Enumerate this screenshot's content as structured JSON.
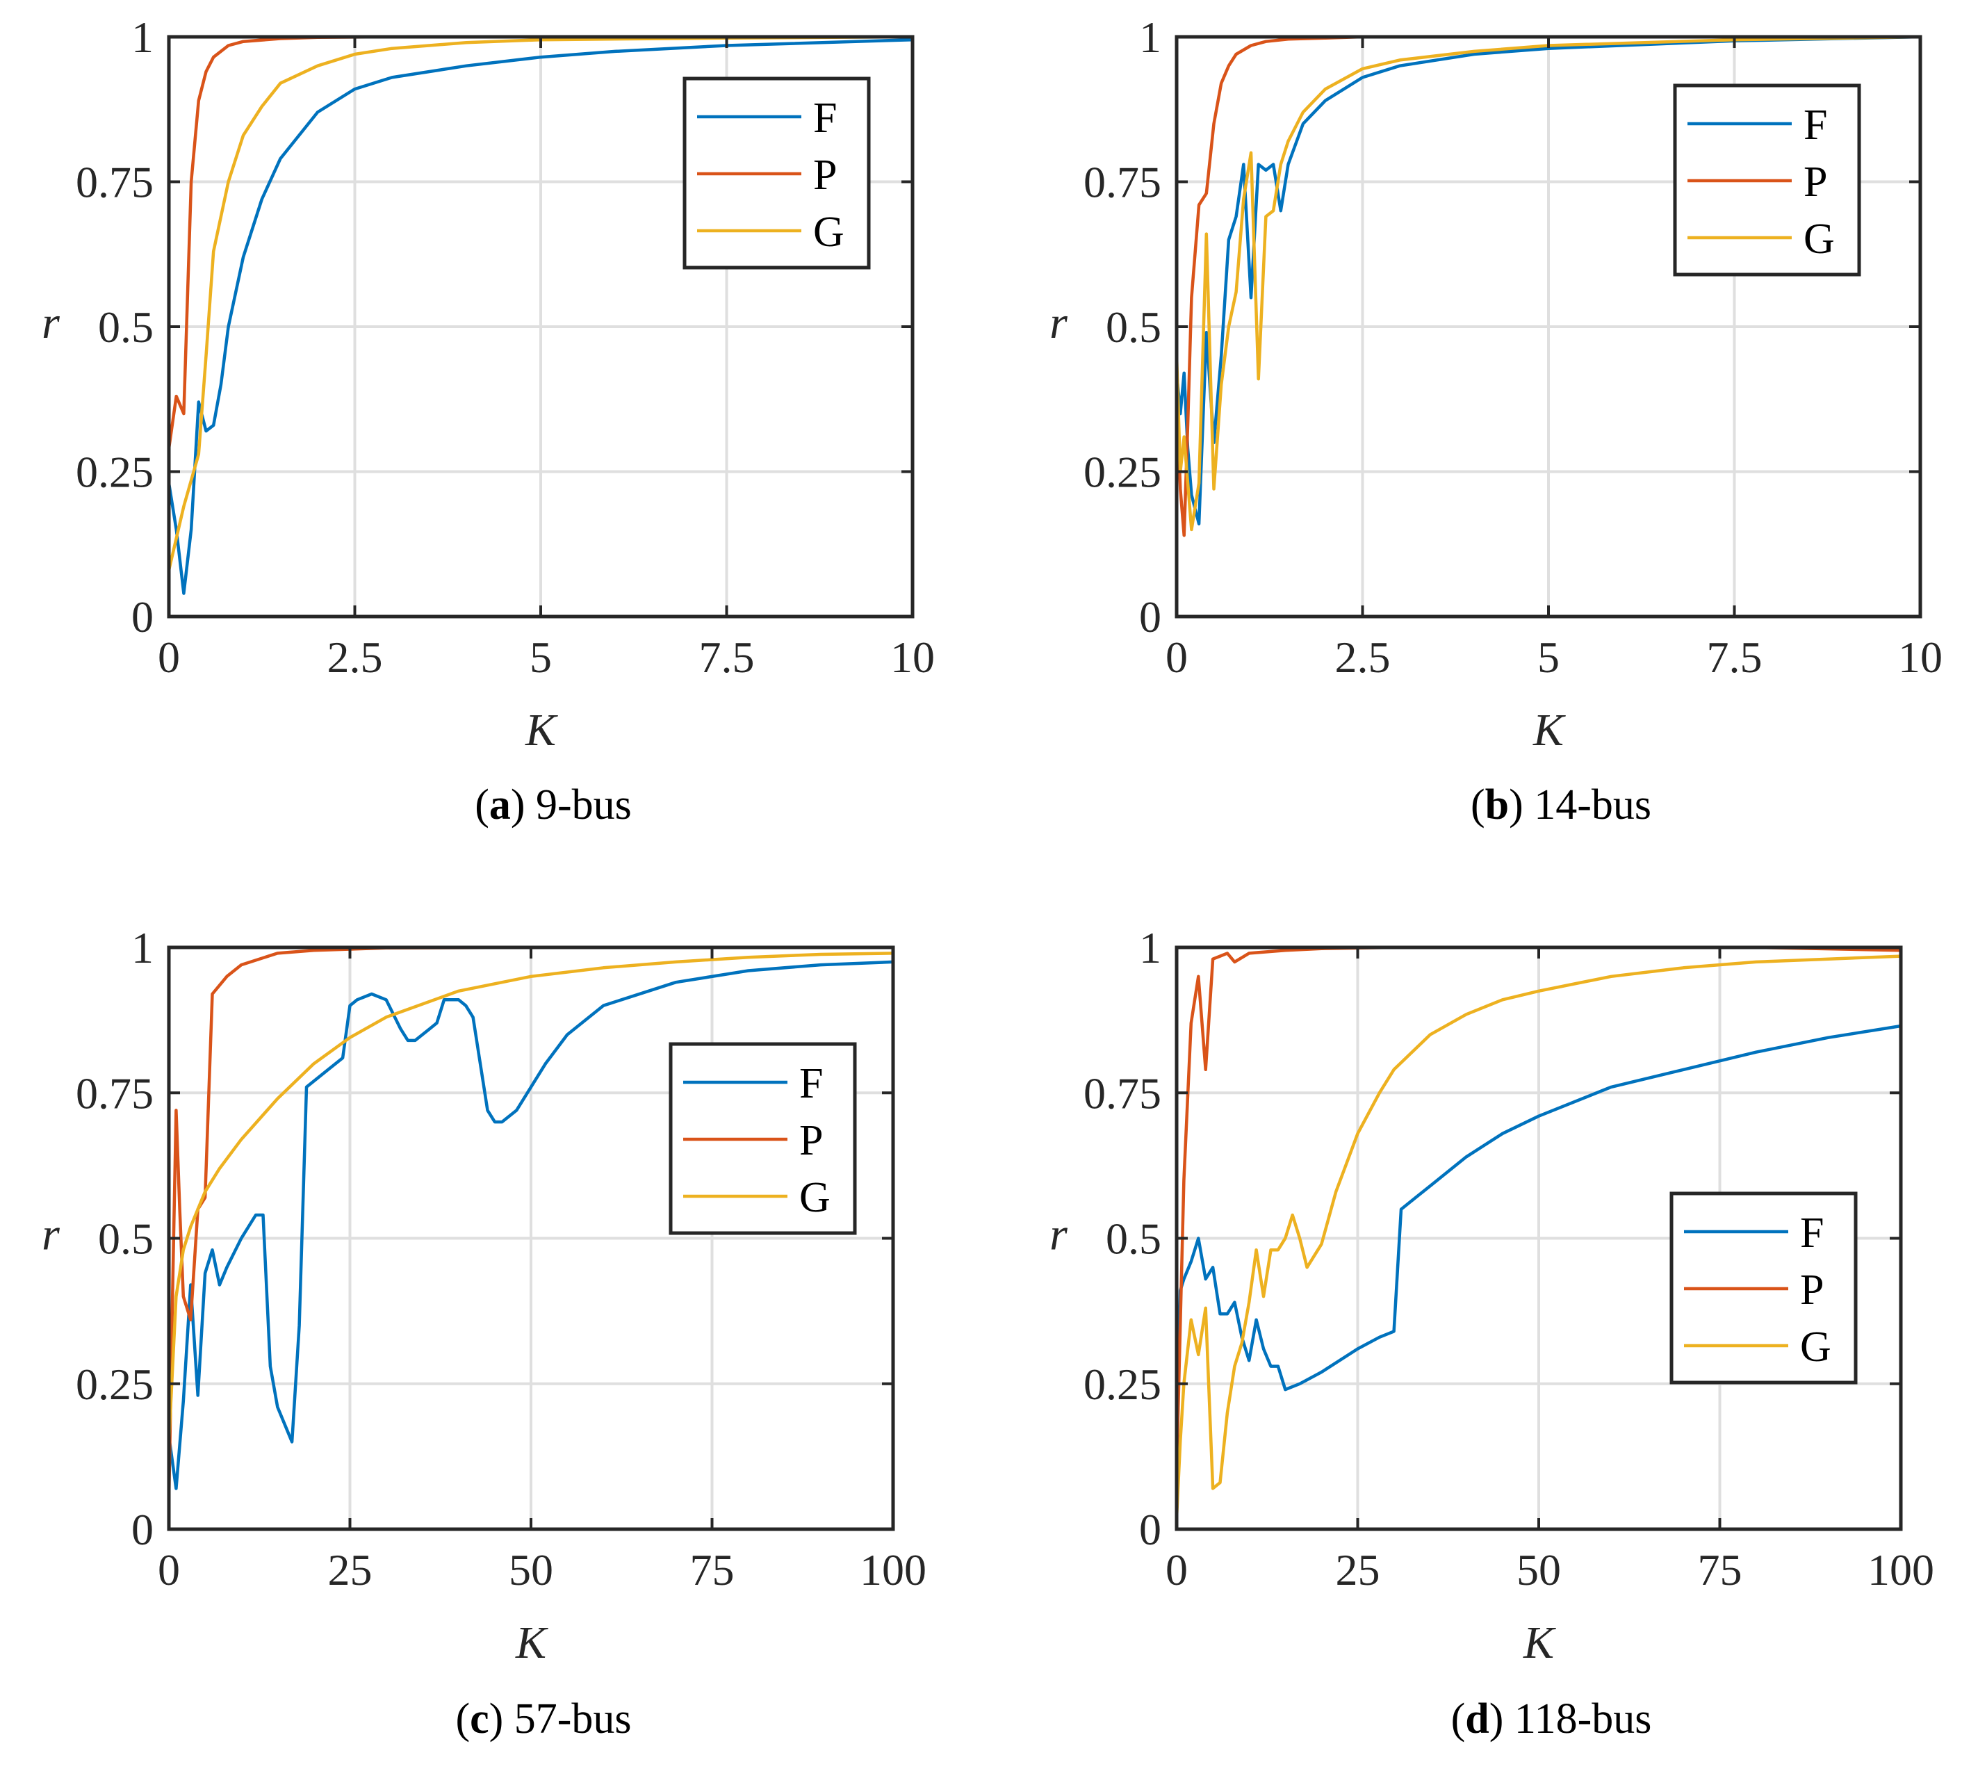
{
  "figure": {
    "panel_count": 4
  },
  "chart_data": [
    {
      "id": "a",
      "type": "line",
      "caption": {
        "label": "(a)",
        "letter": "a",
        "text": "9-bus"
      },
      "xlabel": "K",
      "ylabel": "r",
      "xlim": [
        0,
        10
      ],
      "ylim": [
        0,
        1
      ],
      "xticks": [
        0,
        2.5,
        5,
        7.5,
        10
      ],
      "xticklabels": [
        "0",
        "2.5",
        "5",
        "7.5",
        "10"
      ],
      "yticks": [
        0,
        0.25,
        0.5,
        0.75,
        1
      ],
      "yticklabels": [
        "0",
        "0.25",
        "0.5",
        "0.75",
        "1"
      ],
      "grid": true,
      "legend": {
        "placement": "top-right",
        "entries": [
          "F",
          "P",
          "G"
        ]
      },
      "series": [
        {
          "name": "F",
          "color": "#0072bd",
          "x": [
            0,
            0.1,
            0.2,
            0.3,
            0.4,
            0.5,
            0.6,
            0.7,
            0.8,
            1.0,
            1.25,
            1.5,
            2.0,
            2.5,
            3.0,
            4.0,
            5.0,
            6.0,
            7.5,
            10
          ],
          "y": [
            0.23,
            0.15,
            0.04,
            0.15,
            0.37,
            0.32,
            0.33,
            0.4,
            0.5,
            0.62,
            0.72,
            0.79,
            0.87,
            0.91,
            0.93,
            0.95,
            0.965,
            0.975,
            0.985,
            0.995
          ]
        },
        {
          "name": "P",
          "color": "#d95319",
          "x": [
            0,
            0.1,
            0.2,
            0.3,
            0.4,
            0.5,
            0.6,
            0.8,
            1.0,
            1.5,
            2.0,
            3.0,
            5.0,
            10
          ],
          "y": [
            0.29,
            0.38,
            0.35,
            0.75,
            0.89,
            0.94,
            0.965,
            0.985,
            0.992,
            0.997,
            0.999,
            1.0,
            1.0,
            1.0
          ]
        },
        {
          "name": "G",
          "color": "#edb120",
          "x": [
            0,
            0.2,
            0.4,
            0.5,
            0.6,
            0.8,
            1.0,
            1.25,
            1.5,
            2.0,
            2.5,
            3.0,
            4.0,
            5.0,
            7.5,
            10
          ],
          "y": [
            0.08,
            0.19,
            0.28,
            0.45,
            0.63,
            0.75,
            0.83,
            0.88,
            0.92,
            0.95,
            0.97,
            0.98,
            0.99,
            0.995,
            0.998,
            1.0
          ]
        }
      ]
    },
    {
      "id": "b",
      "type": "line",
      "caption": {
        "label": "(b)",
        "letter": "b",
        "text": "14-bus"
      },
      "xlabel": "K",
      "ylabel": "r",
      "xlim": [
        0,
        10
      ],
      "ylim": [
        0,
        1
      ],
      "xticks": [
        0,
        2.5,
        5,
        7.5,
        10
      ],
      "xticklabels": [
        "0",
        "2.5",
        "5",
        "7.5",
        "10"
      ],
      "yticks": [
        0,
        0.25,
        0.5,
        0.75,
        1
      ],
      "yticklabels": [
        "0",
        "0.25",
        "0.5",
        "0.75",
        "1"
      ],
      "grid": true,
      "legend": {
        "placement": "top-right",
        "entries": [
          "F",
          "P",
          "G"
        ]
      },
      "series": [
        {
          "name": "F",
          "color": "#0072bd",
          "x": [
            0,
            0.05,
            0.1,
            0.15,
            0.2,
            0.3,
            0.4,
            0.5,
            0.6,
            0.7,
            0.8,
            0.9,
            1.0,
            1.1,
            1.2,
            1.3,
            1.4,
            1.5,
            1.7,
            2.0,
            2.5,
            3.0,
            4.0,
            5.0,
            7.5,
            10
          ],
          "y": [
            0.42,
            0.35,
            0.42,
            0.29,
            0.21,
            0.16,
            0.49,
            0.3,
            0.45,
            0.65,
            0.69,
            0.78,
            0.55,
            0.78,
            0.77,
            0.78,
            0.7,
            0.78,
            0.85,
            0.89,
            0.93,
            0.95,
            0.97,
            0.98,
            0.993,
            1.0
          ]
        },
        {
          "name": "P",
          "color": "#d95319",
          "x": [
            0,
            0.05,
            0.1,
            0.15,
            0.2,
            0.3,
            0.4,
            0.5,
            0.6,
            0.7,
            0.8,
            1.0,
            1.2,
            1.5,
            2.0,
            2.5,
            3.0,
            5.0,
            10
          ],
          "y": [
            0.39,
            0.22,
            0.14,
            0.33,
            0.55,
            0.71,
            0.73,
            0.85,
            0.92,
            0.95,
            0.97,
            0.985,
            0.992,
            0.996,
            0.998,
            1.0,
            1.0,
            1.0,
            1.0
          ]
        },
        {
          "name": "G",
          "color": "#edb120",
          "x": [
            0,
            0.05,
            0.1,
            0.2,
            0.3,
            0.4,
            0.5,
            0.6,
            0.7,
            0.8,
            0.9,
            1.0,
            1.1,
            1.2,
            1.3,
            1.4,
            1.5,
            1.7,
            2.0,
            2.5,
            3.0,
            4.0,
            5.0,
            7.5,
            10
          ],
          "y": [
            0.45,
            0.25,
            0.31,
            0.15,
            0.23,
            0.66,
            0.22,
            0.4,
            0.5,
            0.56,
            0.72,
            0.8,
            0.41,
            0.69,
            0.7,
            0.78,
            0.82,
            0.87,
            0.91,
            0.945,
            0.96,
            0.975,
            0.985,
            0.995,
            1.0
          ]
        }
      ]
    },
    {
      "id": "c",
      "type": "line",
      "caption": {
        "label": "(c)",
        "letter": "c",
        "text": "57-bus"
      },
      "xlabel": "K",
      "ylabel": "r",
      "xlim": [
        0,
        100
      ],
      "ylim": [
        0,
        1
      ],
      "xticks": [
        0,
        25,
        50,
        75,
        100
      ],
      "xticklabels": [
        "0",
        "25",
        "50",
        "75",
        "100"
      ],
      "yticks": [
        0,
        0.25,
        0.5,
        0.75,
        1
      ],
      "yticklabels": [
        "0",
        "0.25",
        "0.5",
        "0.75",
        "1"
      ],
      "grid": true,
      "legend": {
        "placement": "right",
        "entries": [
          "F",
          "P",
          "G"
        ]
      },
      "series": [
        {
          "name": "F",
          "color": "#0072bd",
          "x": [
            0,
            1,
            2,
            3,
            4,
            5,
            6,
            7,
            8,
            10,
            12,
            13,
            14,
            15,
            17,
            18,
            19,
            20,
            22,
            24,
            25,
            26,
            28,
            30,
            32,
            33,
            34,
            36,
            37,
            38,
            40,
            41,
            42,
            44,
            45,
            46,
            48,
            50,
            52,
            55,
            60,
            70,
            80,
            90,
            100
          ],
          "y": [
            0.16,
            0.07,
            0.22,
            0.42,
            0.23,
            0.44,
            0.48,
            0.42,
            0.45,
            0.5,
            0.54,
            0.54,
            0.28,
            0.21,
            0.15,
            0.35,
            0.76,
            0.77,
            0.79,
            0.81,
            0.9,
            0.91,
            0.92,
            0.91,
            0.86,
            0.84,
            0.84,
            0.86,
            0.87,
            0.91,
            0.91,
            0.9,
            0.88,
            0.72,
            0.7,
            0.7,
            0.72,
            0.76,
            0.8,
            0.85,
            0.9,
            0.94,
            0.96,
            0.97,
            0.975
          ]
        },
        {
          "name": "P",
          "color": "#d95319",
          "x": [
            0,
            0.5,
            1,
            1.5,
            2,
            3,
            4,
            5,
            6,
            8,
            10,
            15,
            20,
            30,
            50,
            100
          ],
          "y": [
            0.05,
            0.4,
            0.72,
            0.55,
            0.4,
            0.36,
            0.55,
            0.57,
            0.92,
            0.95,
            0.97,
            0.99,
            0.995,
            0.999,
            1.0,
            1.0
          ]
        },
        {
          "name": "G",
          "color": "#edb120",
          "x": [
            0,
            1,
            2,
            3,
            5,
            7,
            10,
            15,
            20,
            25,
            30,
            40,
            50,
            60,
            70,
            80,
            90,
            100
          ],
          "y": [
            0.15,
            0.4,
            0.48,
            0.52,
            0.58,
            0.62,
            0.67,
            0.74,
            0.8,
            0.845,
            0.88,
            0.925,
            0.95,
            0.965,
            0.975,
            0.983,
            0.988,
            0.99
          ]
        }
      ]
    },
    {
      "id": "d",
      "type": "line",
      "caption": {
        "label": "(d)",
        "letter": "d",
        "text": "118-bus"
      },
      "xlabel": "K",
      "ylabel": "r",
      "xlim": [
        0,
        100
      ],
      "ylim": [
        0,
        1
      ],
      "xticks": [
        0,
        25,
        50,
        75,
        100
      ],
      "xticklabels": [
        "0",
        "25",
        "50",
        "75",
        "100"
      ],
      "yticks": [
        0,
        0.25,
        0.5,
        0.75,
        1
      ],
      "yticklabels": [
        "0",
        "0.25",
        "0.5",
        "0.75",
        "1"
      ],
      "grid": true,
      "legend": {
        "placement": "right",
        "entries": [
          "F",
          "P",
          "G"
        ]
      },
      "series": [
        {
          "name": "F",
          "color": "#0072bd",
          "x": [
            0,
            0.5,
            1,
            2,
            3,
            4,
            5,
            6,
            7,
            8,
            9,
            10,
            11,
            12,
            13,
            14,
            15,
            17,
            20,
            25,
            28,
            30,
            31,
            33,
            35,
            40,
            45,
            50,
            60,
            70,
            80,
            90,
            100
          ],
          "y": [
            0.1,
            0.41,
            0.43,
            0.46,
            0.5,
            0.43,
            0.45,
            0.37,
            0.37,
            0.39,
            0.33,
            0.29,
            0.36,
            0.31,
            0.28,
            0.28,
            0.24,
            0.25,
            0.27,
            0.31,
            0.33,
            0.34,
            0.55,
            0.57,
            0.59,
            0.64,
            0.68,
            0.71,
            0.76,
            0.79,
            0.82,
            0.845,
            0.865
          ]
        },
        {
          "name": "P",
          "color": "#d95319",
          "x": [
            0,
            1,
            2,
            3,
            4,
            5,
            6,
            7,
            8,
            10,
            15,
            20,
            30,
            50,
            80,
            100
          ],
          "y": [
            0.1,
            0.6,
            0.87,
            0.95,
            0.79,
            0.98,
            0.985,
            0.99,
            0.975,
            0.99,
            0.995,
            0.998,
            1.0,
            1.0,
            1.0,
            0.995
          ]
        },
        {
          "name": "G",
          "color": "#edb120",
          "x": [
            0,
            0.5,
            1,
            2,
            3,
            4,
            5,
            6,
            7,
            8,
            9,
            10,
            11,
            12,
            13,
            14,
            15,
            16,
            17,
            18,
            20,
            22,
            25,
            28,
            30,
            35,
            40,
            45,
            50,
            60,
            70,
            80,
            90,
            100
          ],
          "y": [
            0.02,
            0.15,
            0.25,
            0.36,
            0.3,
            0.38,
            0.07,
            0.08,
            0.2,
            0.28,
            0.32,
            0.39,
            0.48,
            0.4,
            0.48,
            0.48,
            0.5,
            0.54,
            0.5,
            0.45,
            0.49,
            0.58,
            0.68,
            0.75,
            0.79,
            0.85,
            0.885,
            0.91,
            0.925,
            0.95,
            0.965,
            0.975,
            0.98,
            0.985
          ]
        }
      ]
    }
  ]
}
